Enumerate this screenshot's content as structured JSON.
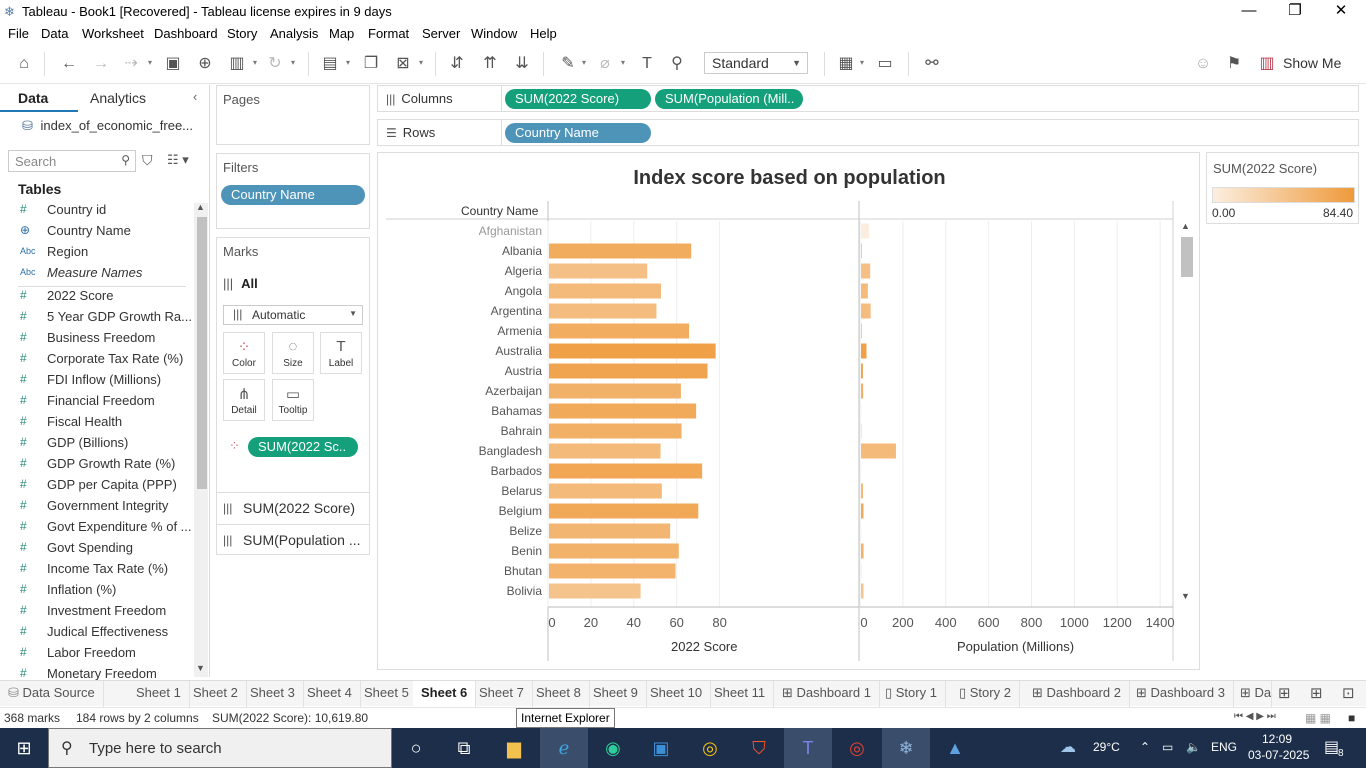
{
  "window": {
    "title": "Tableau - Book1 [Recovered] - Tableau license expires in 9 days",
    "minimize": "—",
    "maximize": "❐",
    "close": "✕"
  },
  "menu": [
    "File",
    "Data",
    "Worksheet",
    "Dashboard",
    "Story",
    "Analysis",
    "Map",
    "Format",
    "Server",
    "Window",
    "Help"
  ],
  "toolbar": {
    "fit_value": "Standard",
    "show_me_label": "Show Me"
  },
  "data_pane": {
    "tab_data": "Data",
    "tab_analytics": "Analytics",
    "datasource": "index_of_economic_free...",
    "search_placeholder": "Search",
    "tables_heading": "Tables",
    "fields": [
      {
        "type": "num",
        "label": "Country id"
      },
      {
        "type": "geo",
        "label": "Country Name"
      },
      {
        "type": "abc",
        "label": "Region"
      },
      {
        "type": "abc",
        "label": "Measure Names"
      },
      {
        "type": "num",
        "label": "2022 Score"
      },
      {
        "type": "num",
        "label": "5 Year GDP Growth Ra..."
      },
      {
        "type": "num",
        "label": "Business Freedom"
      },
      {
        "type": "num",
        "label": "Corporate Tax Rate (%)"
      },
      {
        "type": "num",
        "label": "FDI Inflow (Millions)"
      },
      {
        "type": "num",
        "label": "Financial Freedom"
      },
      {
        "type": "num",
        "label": "Fiscal Health"
      },
      {
        "type": "num",
        "label": "GDP (Billions)"
      },
      {
        "type": "num",
        "label": "GDP Growth Rate (%)"
      },
      {
        "type": "num",
        "label": "GDP per Capita (PPP)"
      },
      {
        "type": "num",
        "label": "Government Integrity"
      },
      {
        "type": "num",
        "label": "Govt Expenditure % of ..."
      },
      {
        "type": "num",
        "label": "Govt Spending"
      },
      {
        "type": "num",
        "label": "Income Tax Rate (%)"
      },
      {
        "type": "num",
        "label": "Inflation (%)"
      },
      {
        "type": "num",
        "label": "Investment Freedom"
      },
      {
        "type": "num",
        "label": "Judical Effectiveness"
      },
      {
        "type": "num",
        "label": "Labor Freedom"
      },
      {
        "type": "num",
        "label": "Monetary Freedom"
      }
    ]
  },
  "shelves": {
    "pages_label": "Pages",
    "filters_label": "Filters",
    "filter_pill": "Country Name",
    "columns_label": "Columns",
    "rows_label": "Rows",
    "columns_pills": [
      "SUM(2022 Score)",
      "SUM(Population (Mill.."
    ],
    "rows_pill": "Country Name"
  },
  "marks": {
    "heading": "Marks",
    "all_label": "All",
    "mark_type": "Automatic",
    "buttons": [
      "Color",
      "Size",
      "Label",
      "Detail",
      "Tooltip"
    ],
    "color_pill": "SUM(2022 Sc..",
    "measure_rows": [
      "SUM(2022 Score)",
      "SUM(Population ..."
    ]
  },
  "legend": {
    "title": "SUM(2022 Score)",
    "min_label": "0.00",
    "max_label": "84.40",
    "color_low": "#fbeee0",
    "color_high": "#ef9a3b"
  },
  "chart_data": {
    "type": "bar",
    "title": "Index score based on population",
    "row_header": "Country Name",
    "categories": [
      "Afghanistan",
      "Albania",
      "Algeria",
      "Angola",
      "Argentina",
      "Armenia",
      "Australia",
      "Austria",
      "Azerbaijan",
      "Bahamas",
      "Bahrain",
      "Bangladesh",
      "Barbados",
      "Belarus",
      "Belgium",
      "Belize",
      "Benin",
      "Bhutan",
      "Bolivia"
    ],
    "series": [
      {
        "name": "2022 Score",
        "values": [
          0,
          66.3,
          45.8,
          52.2,
          50.1,
          65.3,
          77.7,
          73.9,
          61.5,
          68.6,
          61.8,
          52.0,
          71.4,
          52.6,
          69.6,
          56.5,
          60.5,
          59.0,
          42.7
        ],
        "xlim": [
          0,
          145
        ],
        "ticks": [
          0,
          20,
          40,
          60,
          80
        ],
        "xlabel": "2022 Score"
      },
      {
        "name": "Population (Millions)",
        "values": [
          38.0,
          2.9,
          43.0,
          32.0,
          45.0,
          3.0,
          25.7,
          8.9,
          10.1,
          0.4,
          1.5,
          163.0,
          0.3,
          9.4,
          11.5,
          0.4,
          12.0,
          0.8,
          11.6
        ],
        "xlim": [
          0,
          1460
        ],
        "ticks": [
          0,
          200,
          400,
          600,
          800,
          1000,
          1200,
          1400
        ],
        "xlabel": "Population (Millions)"
      }
    ],
    "color_range": [
      0,
      84.4
    ],
    "grid": true
  },
  "sheet_tabs": [
    "Data Source",
    "Sheet 1",
    "Sheet 2",
    "Sheet 3",
    "Sheet 4",
    "Sheet 5",
    "Sheet 6",
    "Sheet 7",
    "Sheet 8",
    "Sheet 9",
    "Sheet 10",
    "Sheet 11",
    "Dashboard 1",
    "Story 1",
    "Story 2",
    "Dashboard 2",
    "Dashboard 3",
    "Da"
  ],
  "active_sheet": "Sheet 6",
  "status": {
    "marks": "368 marks",
    "rows": "184 rows by 2 columns",
    "sum": "SUM(2022 Score): 10,619.80",
    "tooltip": "Internet Explorer"
  },
  "taskbar": {
    "search_placeholder": "Type here to search",
    "temperature": "29°C",
    "language": "ENG",
    "time": "12:09",
    "date": "03-07-2025",
    "notifications": "8"
  }
}
